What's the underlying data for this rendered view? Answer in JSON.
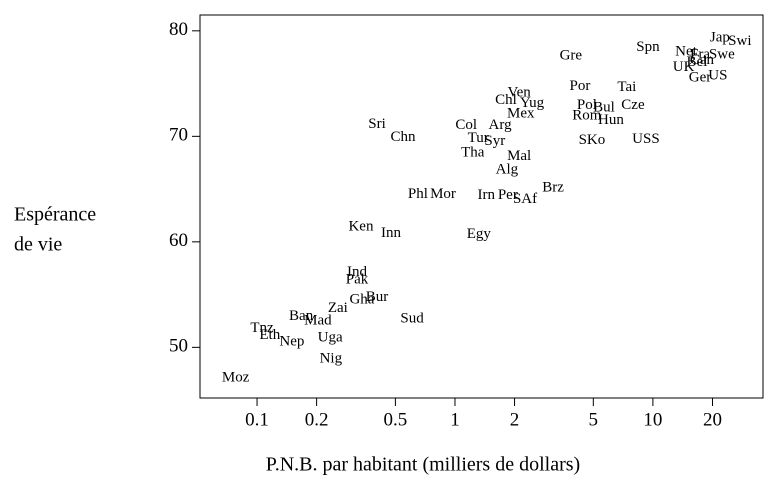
{
  "chart_data": {
    "type": "scatter",
    "xlabel": "P.N.B. par habitant (milliers de dollars)",
    "ylabel": [
      "Espérance",
      "de vie"
    ],
    "xscale": "log",
    "xlim": [
      0.0515,
      36
    ],
    "ylim": [
      45.2,
      81.5
    ],
    "xticks": [
      0.1,
      0.2,
      0.5,
      1,
      2,
      5,
      10,
      20
    ],
    "yticks": [
      50,
      60,
      70,
      80
    ],
    "color": "#000000",
    "labels": [
      "Moz",
      "Nig",
      "Uga",
      "Nep",
      "Eth",
      "Tnz",
      "Ban",
      "Mad",
      "Zai",
      "Sud",
      "Gha",
      "Bur",
      "Pak",
      "Ind",
      "Ken",
      "Inn",
      "Egy",
      "Phl",
      "Mor",
      "Irn",
      "Per",
      "SAf",
      "Brz",
      "Alg",
      "Tha",
      "Mal",
      "Tur",
      "Syr",
      "Col",
      "Arg",
      "Ven",
      "Chl",
      "Yug",
      "Mex",
      "Sri",
      "Chn",
      "Gre",
      "Por",
      "Tai",
      "Pol",
      "Bul",
      "Cze",
      "Rom",
      "Hun",
      "SKo",
      "USS",
      "Spn",
      "Net",
      "Fra",
      "Swe",
      "Can",
      "UK",
      "Bel",
      "Ger",
      "US",
      "Jap",
      "Swi"
    ],
    "x": [
      0.078,
      0.236,
      0.234,
      0.15,
      0.116,
      0.106,
      0.167,
      0.203,
      0.256,
      0.607,
      0.339,
      0.404,
      0.32,
      0.32,
      0.335,
      0.475,
      1.32,
      0.65,
      0.87,
      1.44,
      1.85,
      2.26,
      3.13,
      1.83,
      1.23,
      2.11,
      1.31,
      1.59,
      1.14,
      1.69,
      2.11,
      1.81,
      2.45,
      2.15,
      0.404,
      0.546,
      3.85,
      4.28,
      7.39,
      4.64,
      5.66,
      7.93,
      4.64,
      6.14,
      4.92,
      9.22,
      9.44,
      14.7,
      17.3,
      22.3,
      17.7,
      14.3,
      16.7,
      17.3,
      21.3,
      21.8,
      27.5
    ],
    "values": [
      47.1,
      48.9,
      50.9,
      50.5,
      51.1,
      51.8,
      52.9,
      52.5,
      53.7,
      52.7,
      54.5,
      54.7,
      56.4,
      57.1,
      61.4,
      60.8,
      60.7,
      64.5,
      64.5,
      64.4,
      64.4,
      64.0,
      65.1,
      66.8,
      68.4,
      68.1,
      69.8,
      69.5,
      71.0,
      71.0,
      74.1,
      73.4,
      73.1,
      72.1,
      71.1,
      69.9,
      77.6,
      74.7,
      74.6,
      72.9,
      72.7,
      72.9,
      71.9,
      71.5,
      69.6,
      69.7,
      78.4,
      78.0,
      77.7,
      77.7,
      77.2,
      76.5,
      77.0,
      75.5,
      75.7,
      79.3,
      79.0
    ]
  }
}
